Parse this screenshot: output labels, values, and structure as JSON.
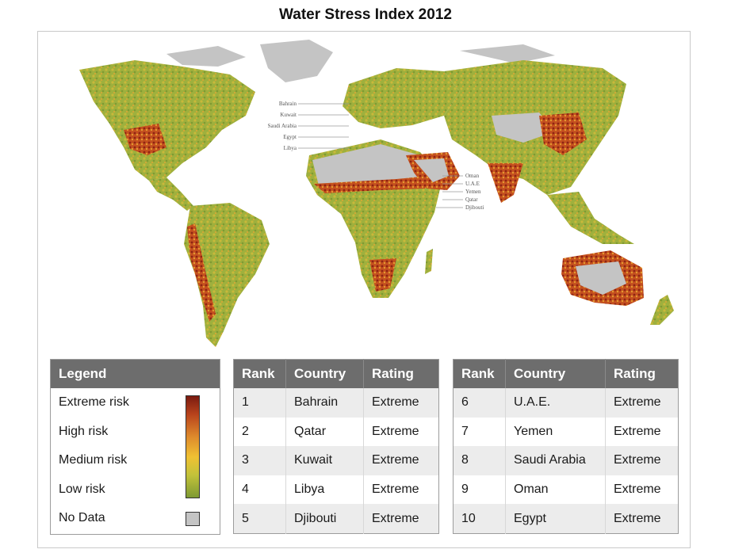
{
  "title": "Water Stress Index 2012",
  "map": {
    "labels_left": [
      "Bahrain",
      "Kuwait",
      "Saudi Arabia",
      "Egypt",
      "Libya"
    ],
    "labels_right": [
      "Oman",
      "U.A.E",
      "Yemen",
      "Qatar",
      "Djibouti"
    ],
    "colors": {
      "ocean": "#ffffff",
      "low": "#8aa43a",
      "medium": "#e8b73a",
      "high": "#d8702a",
      "extreme": "#9a2a14",
      "no_data": "#c4c4c4"
    }
  },
  "legend": {
    "header": "Legend",
    "items": [
      "Extreme risk",
      "High risk",
      "Medium risk",
      "Low risk",
      "No Data"
    ]
  },
  "ranking": {
    "headers": [
      "Rank",
      "Country",
      "Rating"
    ],
    "rows": [
      {
        "rank": "1",
        "country": "Bahrain",
        "rating": "Extreme"
      },
      {
        "rank": "2",
        "country": "Qatar",
        "rating": "Extreme"
      },
      {
        "rank": "3",
        "country": "Kuwait",
        "rating": "Extreme"
      },
      {
        "rank": "4",
        "country": "Libya",
        "rating": "Extreme"
      },
      {
        "rank": "5",
        "country": "Djibouti",
        "rating": "Extreme"
      },
      {
        "rank": "6",
        "country": "U.A.E.",
        "rating": "Extreme"
      },
      {
        "rank": "7",
        "country": "Yemen",
        "rating": "Extreme"
      },
      {
        "rank": "8",
        "country": "Saudi Arabia",
        "rating": "Extreme"
      },
      {
        "rank": "9",
        "country": "Oman",
        "rating": "Extreme"
      },
      {
        "rank": "10",
        "country": "Egypt",
        "rating": "Extreme"
      }
    ]
  }
}
